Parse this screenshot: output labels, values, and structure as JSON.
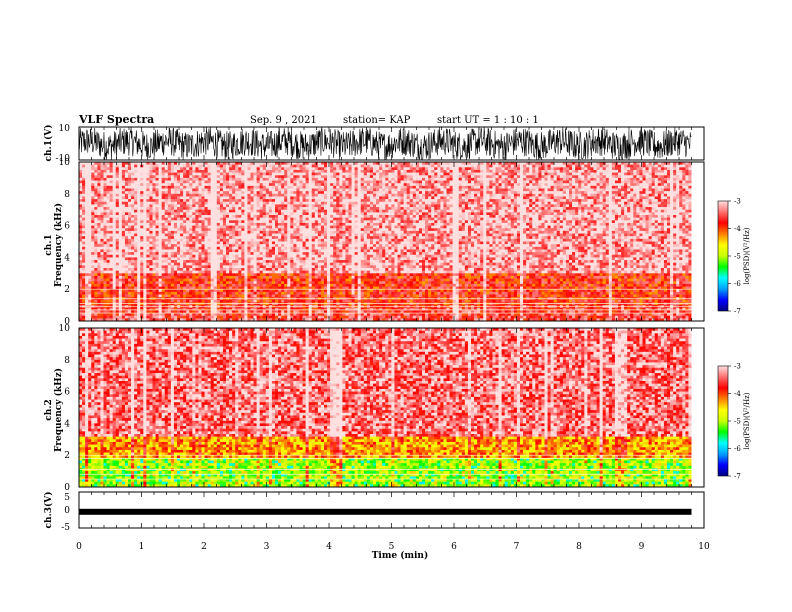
{
  "header": {
    "title": "VLF Spectra",
    "date": "Sep. 9 , 2021",
    "station": "station= KAP",
    "start_ut": "start  UT =   1 : 10 : 1"
  },
  "chart_data": [
    {
      "panel": "ch1-waveform",
      "type": "line",
      "ylabel": "ch.1(V)",
      "ylim": [
        -10,
        10
      ],
      "yticks": [
        "10",
        "-10"
      ],
      "xlim": [
        0,
        9.8
      ],
      "trace_color": "#000000"
    },
    {
      "panel": "ch1-spectrogram",
      "type": "heatmap",
      "ylabel": "ch.1\nFrequency  (kHz)",
      "ylim": [
        0,
        10
      ],
      "yticks": [
        "0",
        "2",
        "4",
        "6",
        "8",
        "10"
      ],
      "xlim": [
        0,
        9.8
      ],
      "bands": [
        {
          "from_khz": 0.0,
          "to_khz": 1.0,
          "level": -3.6
        },
        {
          "from_khz": 1.0,
          "to_khz": 3.0,
          "level": -3.8
        },
        {
          "from_khz": 3.0,
          "to_khz": 10.0,
          "level": -3.2
        }
      ],
      "colorbar": {
        "label": "log(PSD)(V²/Hz)",
        "min": -7,
        "max": -3,
        "ticks": [
          "-3",
          "-4",
          "-5",
          "-6",
          "-7"
        ],
        "stops": [
          "#000080",
          "#0000ff",
          "#00a0ff",
          "#00ffff",
          "#00ff00",
          "#c8ff00",
          "#ffff00",
          "#ff8000",
          "#ff0000",
          "#ff7070",
          "#ffe0e0"
        ]
      }
    },
    {
      "panel": "ch2-spectrogram",
      "type": "heatmap",
      "ylabel": "ch.2\nFrequency  (kHz)",
      "ylim": [
        0,
        10
      ],
      "yticks": [
        "0",
        "2",
        "4",
        "6",
        "8",
        "10"
      ],
      "xlim": [
        0,
        9.8
      ],
      "bands": [
        {
          "from_khz": 0.0,
          "to_khz": 1.8,
          "level": -4.9
        },
        {
          "from_khz": 1.8,
          "to_khz": 3.2,
          "level": -4.3
        },
        {
          "from_khz": 3.2,
          "to_khz": 10.0,
          "level": -3.4
        }
      ],
      "colorbar": {
        "label": "log(PSD)(V²/Hz)",
        "min": -7,
        "max": -3,
        "ticks": [
          "-3",
          "-4",
          "-5",
          "-6",
          "-7"
        ]
      }
    },
    {
      "panel": "ch3-waveform",
      "type": "line",
      "ylabel": "ch.3(V)",
      "ylim": [
        -5,
        5
      ],
      "yticks": [
        "5",
        "0",
        "-5"
      ],
      "xlim": [
        0,
        9.8
      ],
      "level_v": -0.5
    }
  ],
  "xaxis": {
    "label": "Time  (min)",
    "ticks": [
      "0",
      "1",
      "2",
      "3",
      "4",
      "5",
      "6",
      "7",
      "8",
      "9",
      "10"
    ],
    "range": [
      0,
      10
    ]
  }
}
